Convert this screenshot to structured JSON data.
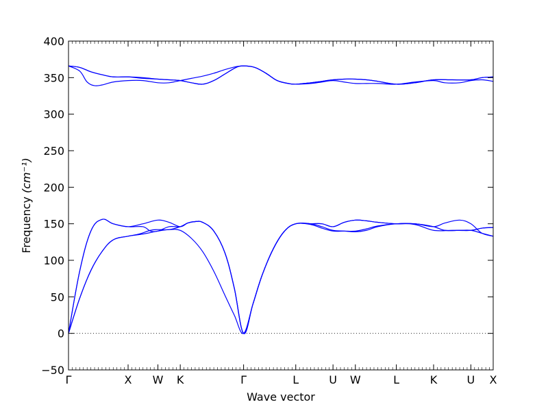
{
  "chart_data": {
    "type": "line",
    "title": "",
    "xlabel": "Wave vector",
    "ylabel": "Frequency",
    "ylabel_unit": "(cm⁻¹)",
    "ylim": [
      -50,
      400
    ],
    "yticks": [
      -50,
      0,
      50,
      100,
      150,
      200,
      250,
      300,
      350,
      400
    ],
    "xlim": [
      0,
      11.4
    ],
    "high_symmetry_points": [
      {
        "label": "Γ",
        "x": 0
      },
      {
        "label": "X",
        "x": 1.6
      },
      {
        "label": "W",
        "x": 2.4
      },
      {
        "label": "K",
        "x": 3.0
      },
      {
        "label": "Γ",
        "x": 4.7
      },
      {
        "label": "L",
        "x": 6.1
      },
      {
        "label": "U",
        "x": 7.1
      },
      {
        "label": "W",
        "x": 7.7
      },
      {
        "label": "L",
        "x": 8.8
      },
      {
        "label": "K",
        "x": 9.8
      },
      {
        "label": "U",
        "x": 10.8
      },
      {
        "label": "X",
        "x": 11.4
      }
    ],
    "zero_line": true,
    "grid": false,
    "line_color": "#0000ff",
    "series": [
      {
        "values": [
          [
            0,
            0
          ],
          [
            0.3,
            48
          ],
          [
            0.6,
            86
          ],
          [
            0.9,
            112
          ],
          [
            1.2,
            128
          ],
          [
            1.6,
            133
          ],
          [
            2.0,
            136
          ],
          [
            2.4,
            140
          ],
          [
            2.7,
            142
          ],
          [
            3.0,
            141
          ],
          [
            3.3,
            130
          ],
          [
            3.6,
            112
          ],
          [
            3.9,
            85
          ],
          [
            4.2,
            52
          ],
          [
            4.45,
            25
          ],
          [
            4.7,
            0
          ],
          [
            4.95,
            40
          ],
          [
            5.2,
            80
          ],
          [
            5.5,
            116
          ],
          [
            5.8,
            140
          ],
          [
            6.1,
            150
          ],
          [
            6.5,
            149
          ],
          [
            6.8,
            144
          ],
          [
            7.1,
            140
          ],
          [
            7.4,
            140
          ],
          [
            7.7,
            140
          ],
          [
            8.0,
            143
          ],
          [
            8.3,
            147
          ],
          [
            8.8,
            150
          ],
          [
            9.3,
            149
          ],
          [
            9.8,
            141
          ],
          [
            10.3,
            141
          ],
          [
            10.8,
            141
          ],
          [
            11.1,
            144
          ],
          [
            11.4,
            145
          ]
        ]
      },
      {
        "values": [
          [
            0,
            0
          ],
          [
            0.3,
            48
          ],
          [
            0.6,
            86
          ],
          [
            0.9,
            112
          ],
          [
            1.2,
            128
          ],
          [
            1.6,
            133
          ],
          [
            1.9,
            136
          ],
          [
            2.2,
            141
          ],
          [
            2.4,
            142
          ],
          [
            2.7,
            142
          ],
          [
            3.0,
            146
          ],
          [
            3.2,
            151
          ],
          [
            3.4,
            153
          ],
          [
            3.6,
            152
          ],
          [
            3.9,
            140
          ],
          [
            4.2,
            110
          ],
          [
            4.45,
            62
          ],
          [
            4.7,
            0
          ],
          [
            4.95,
            40
          ],
          [
            5.2,
            80
          ],
          [
            5.5,
            116
          ],
          [
            5.8,
            140
          ],
          [
            6.1,
            150
          ],
          [
            6.5,
            150
          ],
          [
            6.8,
            146
          ],
          [
            7.1,
            141
          ],
          [
            7.4,
            140
          ],
          [
            7.7,
            139
          ],
          [
            8.0,
            141
          ],
          [
            8.3,
            146
          ],
          [
            8.8,
            150
          ],
          [
            9.3,
            150
          ],
          [
            9.8,
            146
          ],
          [
            10.1,
            141
          ],
          [
            10.5,
            141
          ],
          [
            10.8,
            141
          ],
          [
            11.1,
            137
          ],
          [
            11.4,
            133
          ]
        ]
      },
      {
        "values": [
          [
            0,
            0
          ],
          [
            0.3,
            85
          ],
          [
            0.6,
            140
          ],
          [
            0.9,
            156
          ],
          [
            1.2,
            150
          ],
          [
            1.6,
            146
          ],
          [
            2.0,
            146
          ],
          [
            2.2,
            140
          ],
          [
            2.4,
            140
          ],
          [
            2.7,
            146
          ],
          [
            3.0,
            146
          ],
          [
            3.2,
            151
          ],
          [
            3.4,
            153
          ],
          [
            3.6,
            152
          ],
          [
            3.9,
            140
          ],
          [
            4.2,
            110
          ],
          [
            4.45,
            62
          ],
          [
            4.7,
            0
          ],
          [
            4.95,
            40
          ],
          [
            5.2,
            80
          ],
          [
            5.5,
            116
          ],
          [
            5.8,
            140
          ],
          [
            6.1,
            150
          ],
          [
            6.5,
            150
          ],
          [
            6.8,
            150
          ],
          [
            7.1,
            146
          ],
          [
            7.4,
            152
          ],
          [
            7.7,
            155
          ],
          [
            8.0,
            154
          ],
          [
            8.3,
            152
          ],
          [
            8.8,
            150
          ],
          [
            9.3,
            150
          ],
          [
            9.8,
            146
          ],
          [
            10.1,
            151
          ],
          [
            10.5,
            155
          ],
          [
            10.8,
            150
          ],
          [
            11.1,
            137
          ],
          [
            11.4,
            133
          ]
        ]
      },
      {
        "values": [
          [
            0,
            0
          ],
          [
            0.3,
            85
          ],
          [
            0.6,
            140
          ],
          [
            0.9,
            156
          ],
          [
            1.2,
            150
          ],
          [
            1.6,
            146
          ],
          [
            2.0,
            150
          ],
          [
            2.4,
            155
          ],
          [
            2.7,
            152
          ],
          [
            3.0,
            146
          ],
          [
            3.2,
            151
          ],
          [
            3.4,
            153
          ],
          [
            3.6,
            152
          ],
          [
            3.9,
            140
          ],
          [
            4.2,
            110
          ],
          [
            4.45,
            62
          ],
          [
            4.7,
            0
          ],
          [
            4.95,
            40
          ],
          [
            5.2,
            80
          ],
          [
            5.5,
            116
          ],
          [
            5.8,
            140
          ],
          [
            6.1,
            150
          ],
          [
            6.5,
            150
          ],
          [
            6.8,
            150
          ],
          [
            7.1,
            146
          ],
          [
            7.4,
            152
          ],
          [
            7.7,
            155
          ],
          [
            8.0,
            154
          ],
          [
            8.3,
            152
          ],
          [
            8.8,
            150
          ],
          [
            9.3,
            150
          ],
          [
            9.8,
            146
          ],
          [
            10.1,
            141
          ],
          [
            10.5,
            141
          ],
          [
            10.8,
            141
          ],
          [
            11.1,
            144
          ],
          [
            11.4,
            145
          ]
        ]
      },
      {
        "values": [
          [
            0,
            366
          ],
          [
            0.3,
            364
          ],
          [
            0.6,
            358
          ],
          [
            0.9,
            354
          ],
          [
            1.2,
            351
          ],
          [
            1.6,
            351
          ],
          [
            2.0,
            349
          ],
          [
            2.4,
            348
          ],
          [
            2.7,
            347
          ],
          [
            3.0,
            346
          ],
          [
            3.3,
            343
          ],
          [
            3.6,
            341
          ],
          [
            3.9,
            346
          ],
          [
            4.2,
            355
          ],
          [
            4.5,
            364
          ],
          [
            4.7,
            366
          ],
          [
            5.0,
            364
          ],
          [
            5.3,
            356
          ],
          [
            5.6,
            346
          ],
          [
            5.9,
            342
          ],
          [
            6.1,
            341
          ],
          [
            6.5,
            343
          ],
          [
            6.8,
            345
          ],
          [
            7.1,
            347
          ],
          [
            7.4,
            348
          ],
          [
            7.7,
            348
          ],
          [
            8.0,
            347
          ],
          [
            8.3,
            345
          ],
          [
            8.8,
            341
          ],
          [
            9.3,
            343
          ],
          [
            9.8,
            347
          ],
          [
            10.3,
            347
          ],
          [
            10.8,
            347
          ],
          [
            11.1,
            350
          ],
          [
            11.4,
            351
          ]
        ]
      },
      {
        "values": [
          [
            0,
            366
          ],
          [
            0.3,
            359
          ],
          [
            0.5,
            344
          ],
          [
            0.7,
            339
          ],
          [
            0.9,
            340
          ],
          [
            1.2,
            344
          ],
          [
            1.6,
            346
          ],
          [
            2.0,
            346
          ],
          [
            2.4,
            343
          ],
          [
            2.7,
            343
          ],
          [
            3.0,
            346
          ],
          [
            3.3,
            349
          ],
          [
            3.6,
            352
          ],
          [
            3.9,
            356
          ],
          [
            4.2,
            361
          ],
          [
            4.5,
            365
          ],
          [
            4.7,
            366
          ],
          [
            5.0,
            364
          ],
          [
            5.3,
            356
          ],
          [
            5.6,
            346
          ],
          [
            5.9,
            342
          ],
          [
            6.1,
            341
          ],
          [
            6.5,
            342
          ],
          [
            6.8,
            344
          ],
          [
            7.1,
            346
          ],
          [
            7.4,
            344
          ],
          [
            7.7,
            342
          ],
          [
            8.0,
            342
          ],
          [
            8.3,
            342
          ],
          [
            8.8,
            341
          ],
          [
            9.3,
            344
          ],
          [
            9.8,
            346
          ],
          [
            10.1,
            343
          ],
          [
            10.5,
            343
          ],
          [
            10.8,
            346
          ],
          [
            11.1,
            347
          ],
          [
            11.4,
            345
          ]
        ]
      },
      {
        "values": [
          [
            0,
            366
          ],
          [
            0.3,
            364
          ],
          [
            0.6,
            358
          ],
          [
            0.9,
            354
          ],
          [
            1.2,
            351
          ],
          [
            1.6,
            351
          ],
          [
            2.0,
            350
          ],
          [
            2.4,
            348
          ],
          [
            2.7,
            347
          ],
          [
            3.0,
            346
          ],
          [
            3.3,
            343
          ],
          [
            3.6,
            341
          ],
          [
            3.9,
            346
          ],
          [
            4.2,
            355
          ],
          [
            4.5,
            364
          ],
          [
            4.7,
            366
          ],
          [
            5.0,
            364
          ],
          [
            5.3,
            356
          ],
          [
            5.6,
            346
          ],
          [
            5.9,
            342
          ],
          [
            6.1,
            341
          ],
          [
            6.5,
            343
          ],
          [
            6.8,
            345
          ],
          [
            7.1,
            347
          ],
          [
            7.4,
            348
          ],
          [
            7.7,
            348
          ],
          [
            8.0,
            347
          ],
          [
            8.3,
            345
          ],
          [
            8.8,
            341
          ],
          [
            9.3,
            343
          ],
          [
            9.8,
            347
          ],
          [
            10.3,
            347
          ],
          [
            10.8,
            347
          ],
          [
            11.1,
            350
          ],
          [
            11.4,
            351
          ]
        ]
      }
    ]
  }
}
